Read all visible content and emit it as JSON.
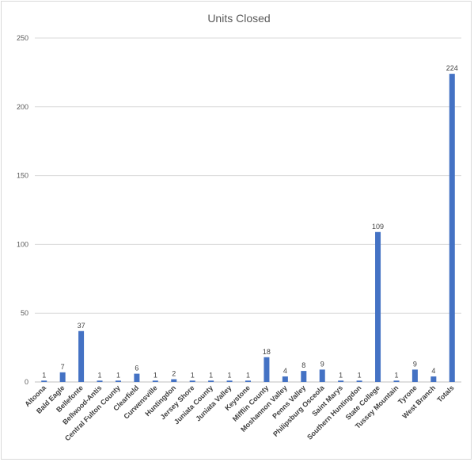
{
  "chart_data": {
    "type": "bar",
    "title": "Units Closed",
    "xlabel": "",
    "ylabel": "",
    "ylim": [
      0,
      250
    ],
    "yticks": [
      0,
      50,
      100,
      150,
      200,
      250
    ],
    "grid": true,
    "legend": "none",
    "bar_color": "#4472C4",
    "categories": [
      "Altoona",
      "Bald Eagle",
      "Bellefonte",
      "Bellwood-Antis",
      "Central Fulton County",
      "Clearfield",
      "Curwensville",
      "Huntingdon",
      "Jersey Shore",
      "Juniata County",
      "Juniata Valley",
      "Keystone",
      "Mifflin County",
      "Moshannon Valley",
      "Penns Valley",
      "Philipsburg Osceola",
      "Saint Marys",
      "Southern Huntingdon",
      "State College",
      "Tussey Mountain",
      "Tyrone",
      "West Branch",
      "Totals"
    ],
    "values": [
      1,
      7,
      37,
      1,
      1,
      6,
      1,
      2,
      1,
      1,
      1,
      1,
      18,
      4,
      8,
      9,
      1,
      1,
      109,
      1,
      9,
      4,
      224
    ]
  }
}
